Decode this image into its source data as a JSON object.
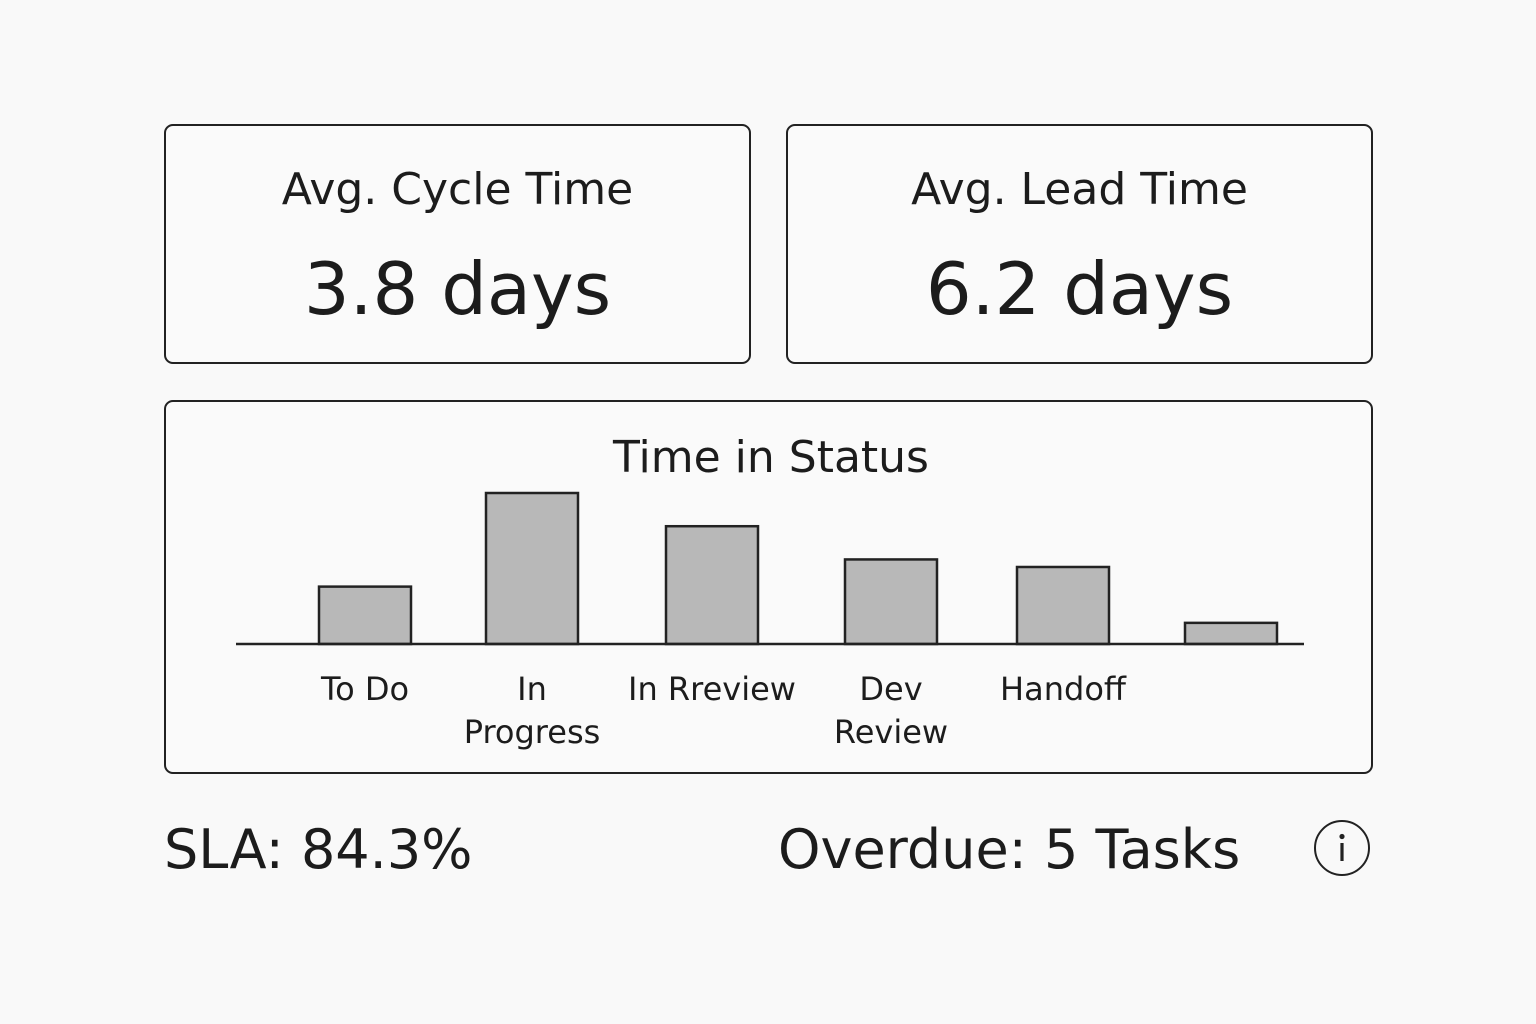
{
  "kpis": {
    "cycle": {
      "label": "Avg. Cycle Time",
      "value": "3.8 days"
    },
    "lead": {
      "label": "Avg. Lead Time",
      "value": "6.2 days"
    }
  },
  "chart_data": {
    "type": "bar",
    "title": "Time in Status",
    "categories": [
      [
        "To Do"
      ],
      [
        "In",
        "Progress"
      ],
      [
        "In Rreview"
      ],
      [
        "Dev",
        "Review"
      ],
      [
        "Handoff"
      ],
      []
    ],
    "values": [
      3.8,
      10,
      7.8,
      5.6,
      5.1,
      1.4
    ],
    "ylim": [
      0,
      10
    ],
    "colors": {
      "bar": "#b8b8b8",
      "stroke": "#222222"
    }
  },
  "footer": {
    "sla": "SLA: 84.3%",
    "overdue": "Overdue: 5 Tasks",
    "info_icon": "info-icon"
  }
}
